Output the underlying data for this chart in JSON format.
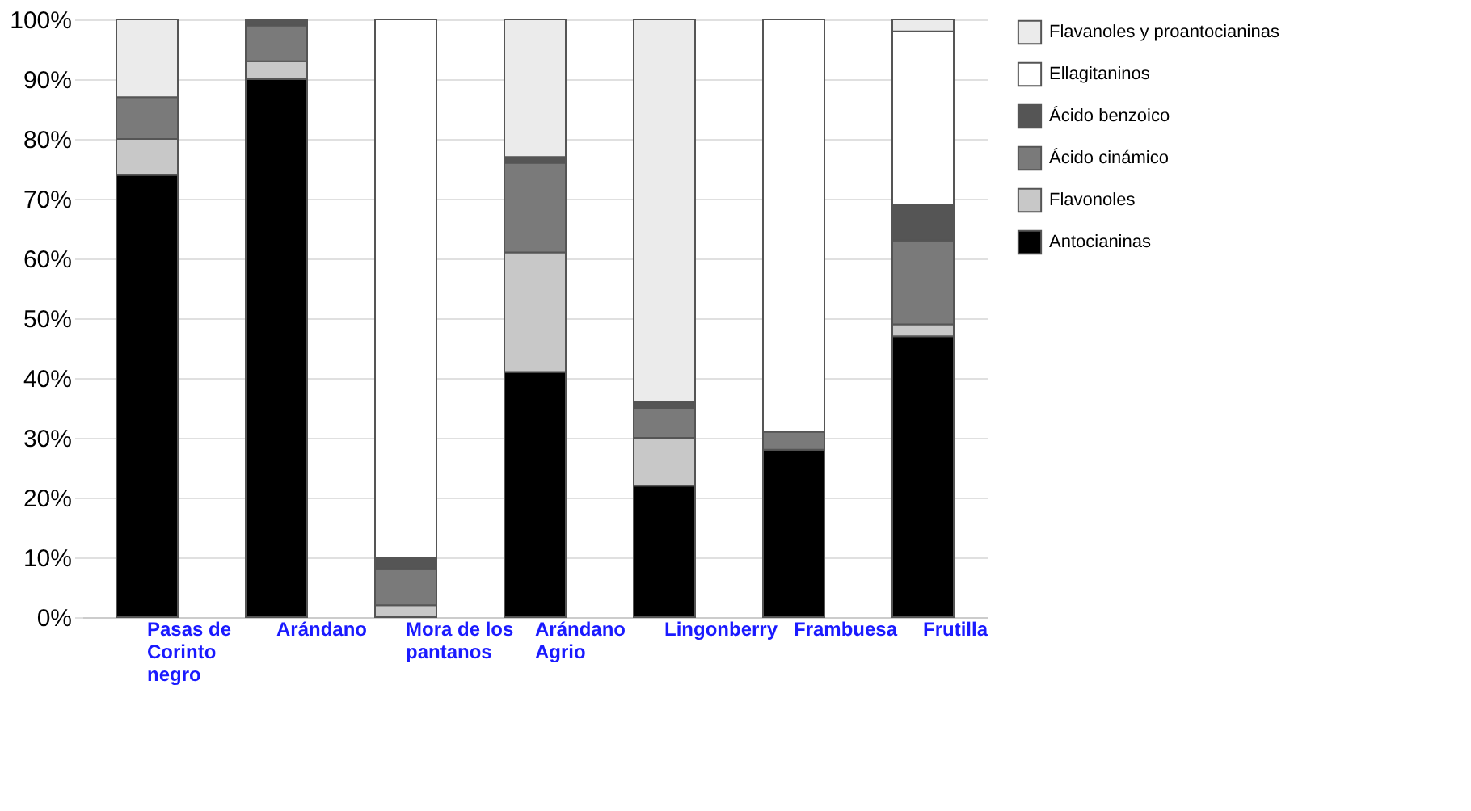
{
  "chart_data": {
    "type": "bar",
    "stacked": true,
    "categories": [
      "Pasas de Corinto negro",
      "Arándano",
      "Mora de los pantanos",
      "Arándano Agrio",
      "Lingonberry",
      "Frambuesa",
      "Frutilla"
    ],
    "series": [
      {
        "name": "Antocianinas",
        "color": "#000000",
        "values": [
          74,
          90,
          0,
          41,
          22,
          28,
          47
        ]
      },
      {
        "name": "Flavonoles",
        "color": "#c8c8c8",
        "values": [
          6,
          3,
          2,
          20,
          8,
          0,
          2
        ]
      },
      {
        "name": "Ácido cinámico",
        "color": "#7a7a7a",
        "values": [
          7,
          6,
          6,
          15,
          5,
          3,
          14
        ]
      },
      {
        "name": "Ácido benzoico",
        "color": "#555555",
        "values": [
          0,
          1,
          2,
          1,
          1,
          0,
          6
        ]
      },
      {
        "name": "Ellagitaninos",
        "color": "#ffffff",
        "values": [
          0,
          0,
          90,
          0,
          0,
          69,
          29
        ]
      },
      {
        "name": "Flavanoles y proantocianinas",
        "color": "#ebebeb",
        "values": [
          13,
          0,
          0,
          23,
          64,
          0,
          2
        ]
      }
    ],
    "ylim": [
      0,
      100
    ],
    "yticks": [
      {
        "value": 0,
        "label": "0%"
      },
      {
        "value": 10,
        "label": "10%"
      },
      {
        "value": 20,
        "label": "20%"
      },
      {
        "value": 30,
        "label": "30%"
      },
      {
        "value": 40,
        "label": "40%"
      },
      {
        "value": 50,
        "label": "50%"
      },
      {
        "value": 60,
        "label": "60%"
      },
      {
        "value": 70,
        "label": "70%"
      },
      {
        "value": 80,
        "label": "80%"
      },
      {
        "value": 90,
        "label": "90%"
      },
      {
        "value": 100,
        "label": "100%"
      }
    ],
    "grid": "y",
    "legend": "right"
  }
}
